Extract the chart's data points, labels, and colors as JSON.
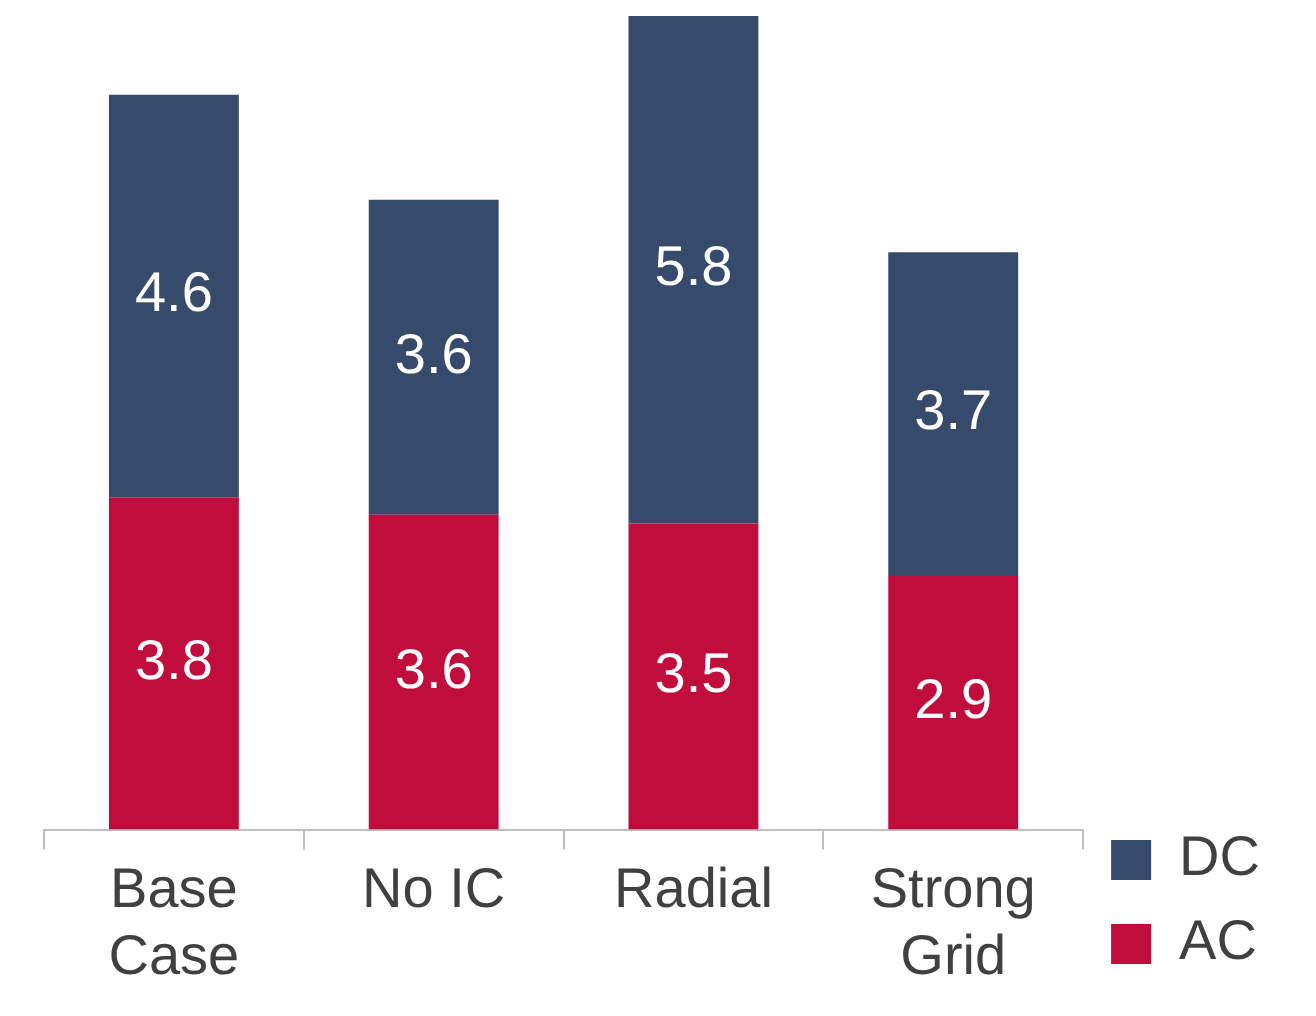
{
  "chart_data": {
    "type": "bar",
    "stacked": true,
    "categories": [
      "Base Case",
      "No IC",
      "Radial",
      "Strong Grid"
    ],
    "series": [
      {
        "name": "AC",
        "color": "#c00d3b",
        "values": [
          3.8,
          3.6,
          3.5,
          2.9
        ]
      },
      {
        "name": "DC",
        "color": "#364b6c",
        "values": [
          4.6,
          3.6,
          5.8,
          3.7
        ]
      }
    ],
    "data_labels": true,
    "legend": "bottom right",
    "grid": false,
    "tick_labels": "x"
  }
}
